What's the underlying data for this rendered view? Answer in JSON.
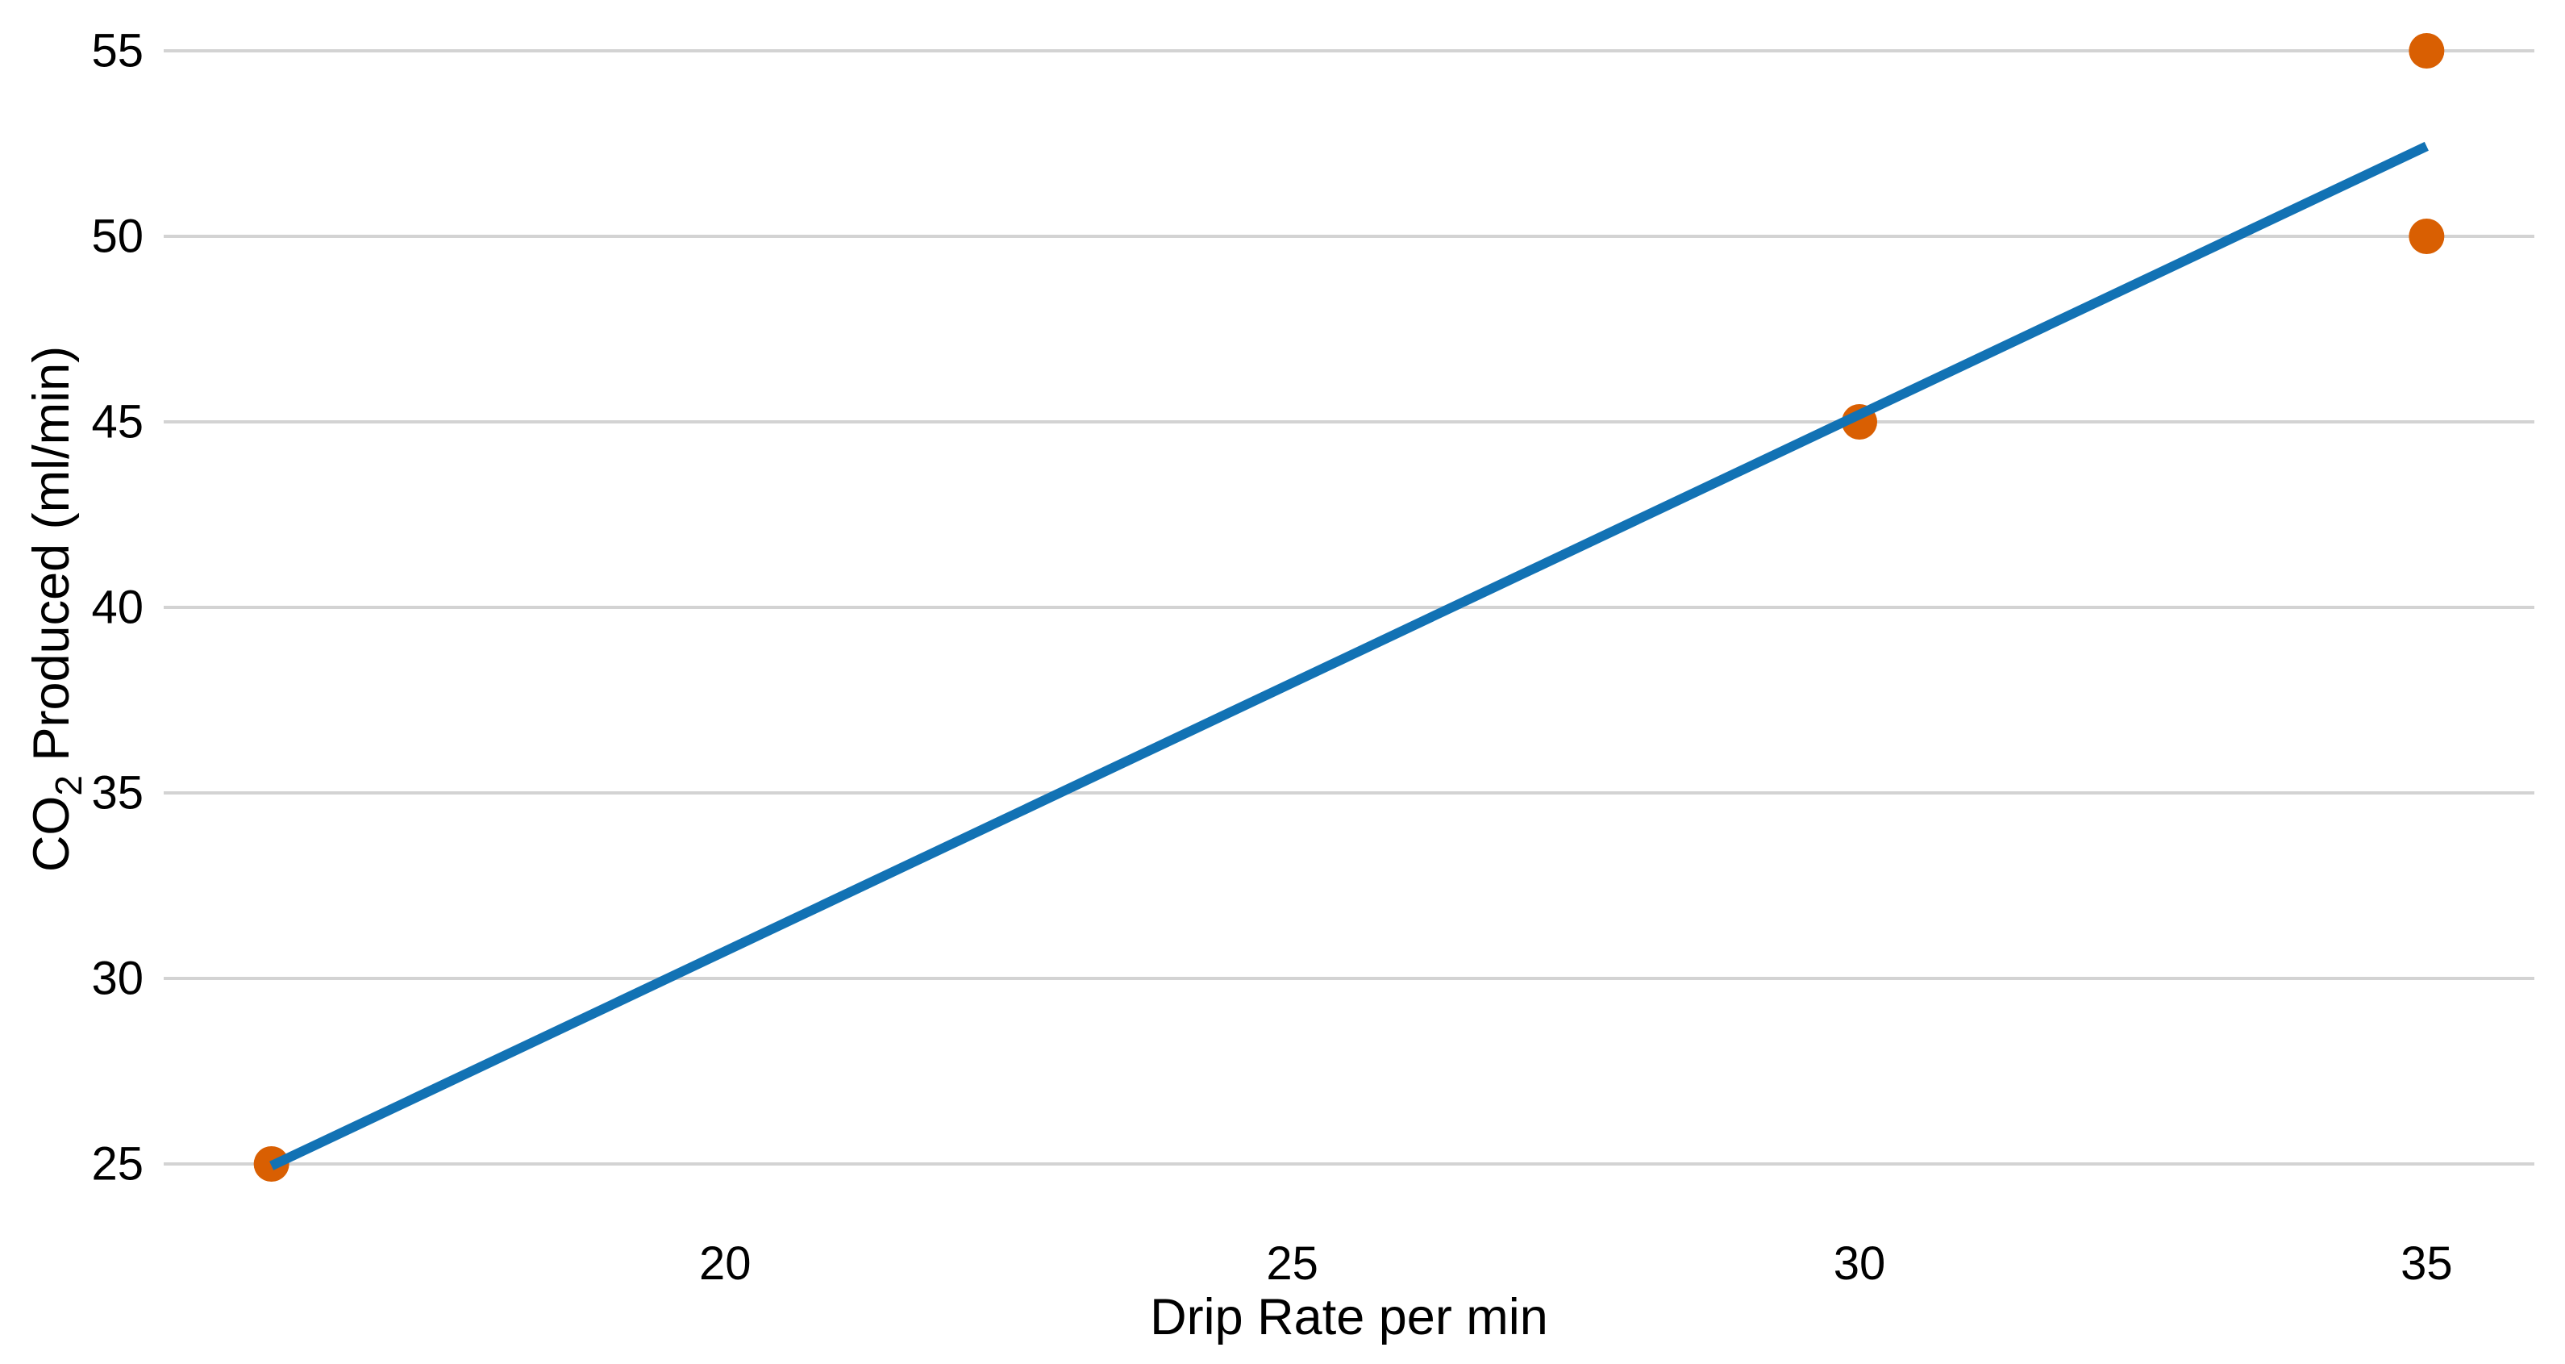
{
  "chart_data": {
    "type": "scatter",
    "title": "",
    "xlabel": "Drip Rate per min",
    "ylabel": "CO2 Produced (ml/min)",
    "ylabel_parts": {
      "prefix": "CO",
      "subscript": "2",
      "suffix": " Produced (ml/min)"
    },
    "x_ticks": [
      20,
      25,
      30,
      35
    ],
    "y_ticks": [
      25,
      30,
      35,
      40,
      45,
      50,
      55
    ],
    "xlim": [
      15.05,
      35.95
    ],
    "ylim": [
      23.5,
      56.5
    ],
    "grid": {
      "horizontal": true,
      "vertical": false
    },
    "legend_position": "none",
    "series": [
      {
        "name": "observations",
        "type": "scatter",
        "marker": "circle",
        "points": [
          {
            "x": 16,
            "y": 25
          },
          {
            "x": 30,
            "y": 45
          },
          {
            "x": 35,
            "y": 50
          },
          {
            "x": 35,
            "y": 55
          }
        ]
      },
      {
        "name": "linear-fit",
        "type": "line",
        "slope": 1.4463,
        "intercept": 1.8079,
        "x_start": 16,
        "x_end": 35
      }
    ],
    "colors": {
      "point": "#D95F02",
      "line": "#1272B4",
      "gridline": "#D3D3D3",
      "text": "#000000",
      "background": "#FFFFFF"
    }
  }
}
